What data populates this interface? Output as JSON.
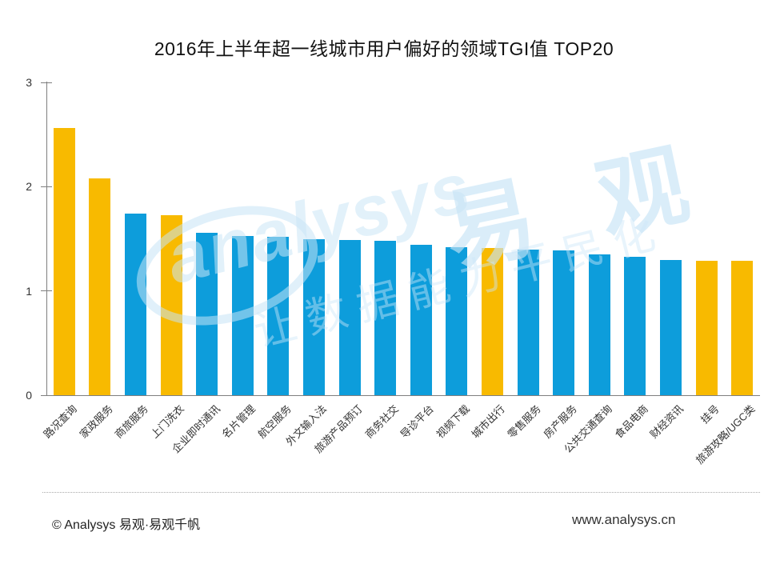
{
  "title": "2016年上半年超一线城市用户偏好的领域TGI值 TOP20",
  "footer": {
    "left": "© Analysys 易观·易观千帆",
    "right": "www.analysys.cn"
  },
  "watermark": {
    "script": "analysys",
    "logo": "易 观",
    "tagline": "让数据能力平民化"
  },
  "colors": {
    "highlight": "#F8BA00",
    "normal": "#0D9DDB",
    "axis": "#7f7f7f",
    "watermark": "#CDE5F6"
  },
  "chart_data": {
    "type": "bar",
    "title": "2016年上半年超一线城市用户偏好的领域TGI值 TOP20",
    "xlabel": "",
    "ylabel": "",
    "ylim": [
      0,
      3
    ],
    "yticks": [
      0,
      1,
      2,
      3
    ],
    "grid": false,
    "legend": false,
    "categories": [
      "路况查询",
      "家政服务",
      "商旅服务",
      "上门洗衣",
      "企业即时通讯",
      "名片管理",
      "航空服务",
      "外文输入法",
      "旅游产品预订",
      "商务社交",
      "导诊平台",
      "视频下载",
      "城市出行",
      "零售服务",
      "房产服务",
      "公共交通查询",
      "食品电商",
      "财经资讯",
      "挂号",
      "旅游攻略/UGC类"
    ],
    "values": [
      2.56,
      2.08,
      1.74,
      1.73,
      1.56,
      1.53,
      1.52,
      1.5,
      1.49,
      1.48,
      1.44,
      1.42,
      1.41,
      1.4,
      1.39,
      1.35,
      1.33,
      1.3,
      1.29,
      1.29
    ],
    "bar_colors": [
      "highlight",
      "highlight",
      "normal",
      "highlight",
      "normal",
      "normal",
      "normal",
      "normal",
      "normal",
      "normal",
      "normal",
      "normal",
      "highlight",
      "normal",
      "normal",
      "normal",
      "normal",
      "normal",
      "highlight",
      "highlight"
    ]
  }
}
